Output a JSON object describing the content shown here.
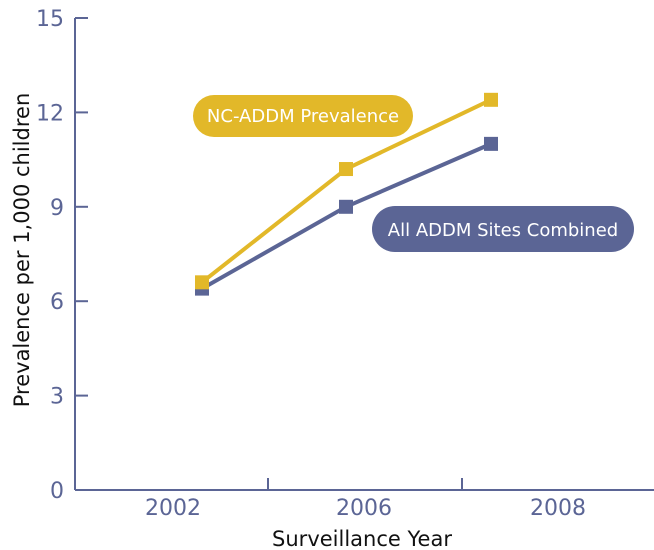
{
  "chart_data": {
    "type": "line",
    "title": "",
    "xlabel": "Surveillance Year",
    "ylabel": "Prevalence per 1,000 children",
    "ylim": [
      0,
      15
    ],
    "y_ticks": [
      "0",
      "3",
      "6",
      "9",
      "12",
      "15"
    ],
    "x_tick_labels": [
      "2002",
      "2006",
      "2008"
    ],
    "grid": false,
    "series": [
      {
        "name": "NC-ADDM Prevalence",
        "color": "#e2b829",
        "marker": "square",
        "points": [
          {
            "x": "2002",
            "y": 6.6
          },
          {
            "x": "2006",
            "y": 10.2
          },
          {
            "x": "2008",
            "y": 12.4
          }
        ]
      },
      {
        "name": "All ADDM Sites Combined",
        "color": "#5b6595",
        "marker": "square",
        "points": [
          {
            "x": "2002",
            "y": 6.4
          },
          {
            "x": "2006",
            "y": 9.0
          },
          {
            "x": "2008",
            "y": 11.0
          }
        ]
      }
    ]
  }
}
